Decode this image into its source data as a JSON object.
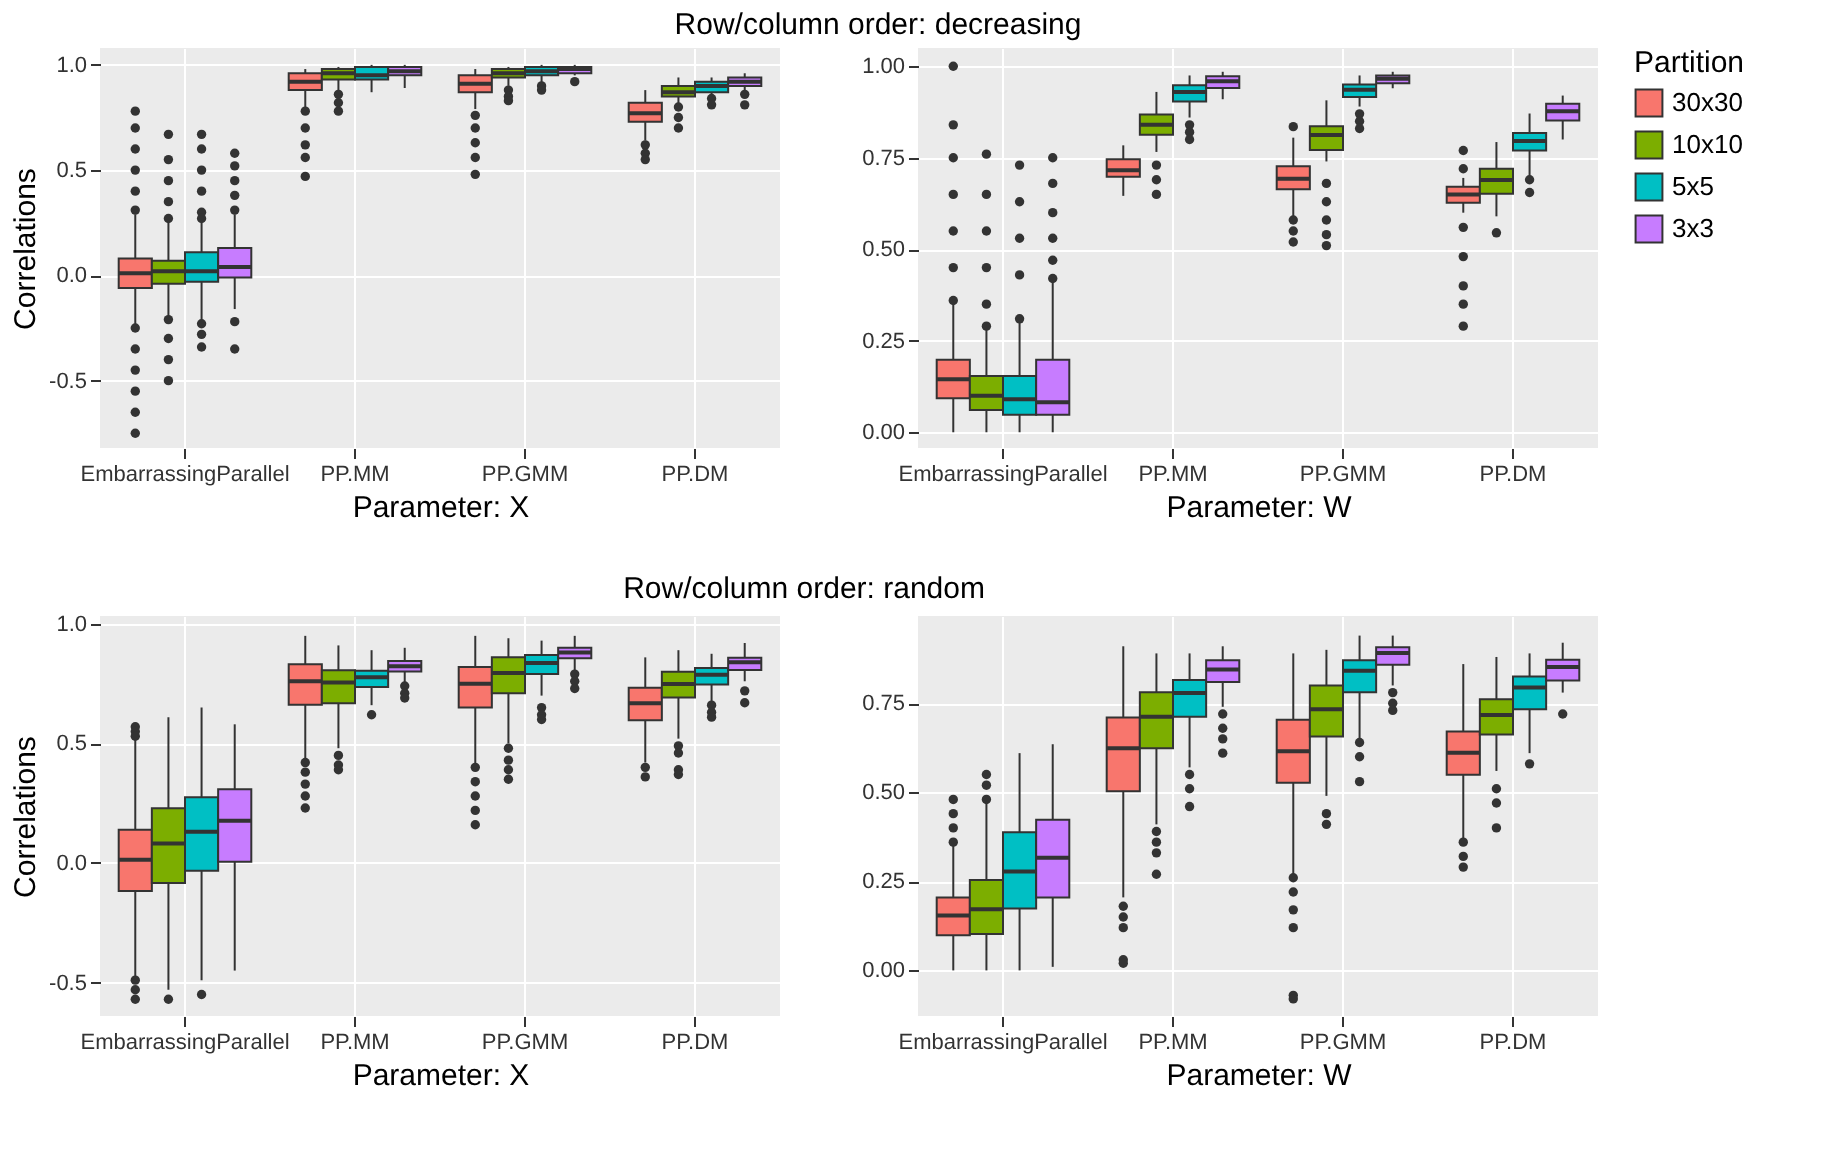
{
  "chart_data": [
    {
      "type": "box",
      "title": "Row/column order: decreasing",
      "xlabel": "Parameter: X",
      "ylabel": "Correlations",
      "categories": [
        "EmbarrassingParallel",
        "PP.MM",
        "PP.GMM",
        "PP.DM"
      ],
      "ylim": [
        -0.82,
        1.08
      ],
      "yticks": [
        -0.5,
        {
          "value": 0,
          "label": "0.0"
        },
        0.5,
        {
          "value": 1,
          "label": "1.0"
        }
      ],
      "grid": true,
      "legend": false,
      "series": [
        {
          "color": "#f8766d",
          "boxes": [
            {
              "low": -0.24,
              "q1": -0.06,
              "median": 0.01,
              "q3": 0.08,
              "high": 0.29,
              "outliers": [
                0.78,
                0.7,
                0.6,
                0.5,
                0.4,
                0.31,
                -0.25,
                -0.35,
                -0.45,
                -0.55,
                -0.65,
                -0.75
              ]
            },
            {
              "low": 0.79,
              "q1": 0.88,
              "median": 0.92,
              "q3": 0.96,
              "high": 0.98,
              "outliers": [
                0.78,
                0.7,
                0.62,
                0.56,
                0.47
              ]
            },
            {
              "low": 0.79,
              "q1": 0.87,
              "median": 0.91,
              "q3": 0.95,
              "high": 0.98,
              "outliers": [
                0.76,
                0.7,
                0.63,
                0.56,
                0.48
              ]
            },
            {
              "low": 0.64,
              "q1": 0.73,
              "median": 0.77,
              "q3": 0.82,
              "high": 0.88,
              "outliers": [
                0.62,
                0.58,
                0.55
              ]
            }
          ]
        },
        {
          "color": "#7cae00",
          "boxes": [
            {
              "low": -0.2,
              "q1": -0.04,
              "median": 0.02,
              "q3": 0.07,
              "high": 0.25,
              "outliers": [
                0.67,
                0.55,
                0.45,
                0.35,
                0.27,
                -0.21,
                -0.3,
                -0.4,
                -0.5
              ]
            },
            {
              "low": 0.87,
              "q1": 0.93,
              "median": 0.96,
              "q3": 0.98,
              "high": 0.99,
              "outliers": [
                0.86,
                0.82,
                0.78
              ]
            },
            {
              "low": 0.9,
              "q1": 0.94,
              "median": 0.96,
              "q3": 0.98,
              "high": 0.99,
              "outliers": [
                0.88,
                0.85,
                0.83
              ]
            },
            {
              "low": 0.81,
              "q1": 0.85,
              "median": 0.87,
              "q3": 0.9,
              "high": 0.94,
              "outliers": [
                0.8,
                0.75,
                0.7
              ]
            }
          ]
        },
        {
          "color": "#00bfc4",
          "boxes": [
            {
              "low": -0.22,
              "q1": -0.03,
              "median": 0.02,
              "q3": 0.11,
              "high": 0.25,
              "outliers": [
                0.67,
                0.6,
                0.5,
                0.4,
                0.3,
                0.27,
                -0.23,
                -0.28,
                -0.34
              ]
            },
            {
              "low": 0.87,
              "q1": 0.93,
              "median": 0.95,
              "q3": 0.99,
              "high": 1.0
            },
            {
              "low": 0.91,
              "q1": 0.95,
              "median": 0.97,
              "q3": 0.99,
              "high": 1.0,
              "outliers": [
                0.9,
                0.88
              ]
            },
            {
              "low": 0.85,
              "q1": 0.87,
              "median": 0.9,
              "q3": 0.92,
              "high": 0.94,
              "outliers": [
                0.84,
                0.81
              ]
            }
          ]
        },
        {
          "color": "#c77cff",
          "boxes": [
            {
              "low": -0.16,
              "q1": -0.01,
              "median": 0.04,
              "q3": 0.13,
              "high": 0.29,
              "outliers": [
                0.58,
                0.52,
                0.45,
                0.38,
                0.31,
                -0.22,
                -0.35
              ]
            },
            {
              "low": 0.89,
              "q1": 0.95,
              "median": 0.97,
              "q3": 0.99,
              "high": 1.0
            },
            {
              "low": 0.95,
              "q1": 0.96,
              "median": 0.98,
              "q3": 0.99,
              "high": 1.0,
              "outliers": [
                0.92
              ]
            },
            {
              "low": 0.88,
              "q1": 0.9,
              "median": 0.92,
              "q3": 0.94,
              "high": 0.96,
              "outliers": [
                0.86,
                0.81
              ]
            }
          ]
        }
      ]
    },
    {
      "type": "box",
      "xlabel": "Parameter: W",
      "categories": [
        "EmbarrassingParallel",
        "PP.MM",
        "PP.GMM",
        "PP.DM"
      ],
      "ylim": [
        -0.043,
        1.05
      ],
      "yticks": [
        {
          "value": 0,
          "label": "0.00"
        },
        0.25,
        {
          "value": 0.5,
          "label": "0.50"
        },
        0.75,
        {
          "value": 1,
          "label": "1.00"
        }
      ],
      "grid": true,
      "legend": "right",
      "legend_title": "Partition",
      "series": [
        {
          "name": "30x30",
          "color": "#f8766d",
          "boxes": [
            {
              "low": 0,
              "q1": 0.093,
              "median": 0.145,
              "q3": 0.198,
              "high": 0.35,
              "outliers": [
                1.0,
                0.84,
                0.75,
                0.65,
                0.55,
                0.45,
                0.36
              ]
            },
            {
              "low": 0.646,
              "q1": 0.698,
              "median": 0.716,
              "q3": 0.746,
              "high": 0.784
            },
            {
              "low": 0.587,
              "q1": 0.664,
              "median": 0.693,
              "q3": 0.727,
              "high": 0.805,
              "outliers": [
                0.835,
                0.58,
                0.55,
                0.52
              ]
            },
            {
              "low": 0.6,
              "q1": 0.627,
              "median": 0.65,
              "q3": 0.671,
              "high": 0.695,
              "outliers": [
                0.77,
                0.72,
                0.56,
                0.48,
                0.4,
                0.35,
                0.29
              ]
            }
          ]
        },
        {
          "name": "10x10",
          "color": "#7cae00",
          "boxes": [
            {
              "low": 0,
              "q1": 0.061,
              "median": 0.1,
              "q3": 0.154,
              "high": 0.28,
              "outliers": [
                0.76,
                0.65,
                0.55,
                0.45,
                0.35,
                0.29
              ]
            },
            {
              "low": 0.766,
              "q1": 0.813,
              "median": 0.84,
              "q3": 0.868,
              "high": 0.93,
              "outliers": [
                0.73,
                0.69,
                0.65
              ]
            },
            {
              "low": 0.74,
              "q1": 0.771,
              "median": 0.812,
              "q3": 0.836,
              "high": 0.907,
              "outliers": [
                0.68,
                0.63,
                0.58,
                0.54,
                0.51
              ]
            },
            {
              "low": 0.59,
              "q1": 0.652,
              "median": 0.689,
              "q3": 0.72,
              "high": 0.793,
              "outliers": [
                0.545
              ]
            }
          ]
        },
        {
          "name": "5x5",
          "color": "#00bfc4",
          "boxes": [
            {
              "low": 0,
              "q1": 0.048,
              "median": 0.09,
              "q3": 0.154,
              "high": 0.3,
              "outliers": [
                0.73,
                0.63,
                0.53,
                0.43,
                0.31
              ]
            },
            {
              "low": 0.86,
              "q1": 0.904,
              "median": 0.93,
              "q3": 0.948,
              "high": 0.975,
              "outliers": [
                0.84,
                0.82,
                0.8
              ]
            },
            {
              "low": 0.89,
              "q1": 0.916,
              "median": 0.936,
              "q3": 0.95,
              "high": 0.975,
              "outliers": [
                0.87,
                0.85,
                0.83
              ]
            },
            {
              "low": 0.7,
              "q1": 0.77,
              "median": 0.796,
              "q3": 0.818,
              "high": 0.871,
              "outliers": [
                0.69,
                0.655
              ]
            }
          ]
        },
        {
          "name": "3x3",
          "color": "#c77cff",
          "boxes": [
            {
              "low": 0,
              "q1": 0.048,
              "median": 0.082,
              "q3": 0.198,
              "high": 0.41,
              "outliers": [
                0.75,
                0.68,
                0.6,
                0.53,
                0.47,
                0.42
              ]
            },
            {
              "low": 0.91,
              "q1": 0.941,
              "median": 0.959,
              "q3": 0.973,
              "high": 0.985
            },
            {
              "low": 0.94,
              "q1": 0.954,
              "median": 0.966,
              "q3": 0.975,
              "high": 0.985
            },
            {
              "low": 0.8,
              "q1": 0.852,
              "median": 0.877,
              "q3": 0.898,
              "high": 0.92
            }
          ]
        }
      ]
    },
    {
      "type": "box",
      "title": "Row/column order: random",
      "xlabel": "Parameter: X",
      "ylabel": "Correlations",
      "categories": [
        "EmbarrassingParallel",
        "PP.MM",
        "PP.GMM",
        "PP.DM"
      ],
      "ylim": [
        -0.64,
        1.033
      ],
      "yticks": [
        -0.5,
        {
          "value": 0,
          "label": "0.0"
        },
        0.5,
        {
          "value": 1,
          "label": "1.0"
        }
      ],
      "grid": true,
      "legend": false,
      "series": [
        {
          "color": "#f8766d",
          "boxes": [
            {
              "low": -0.48,
              "q1": -0.117,
              "median": 0.014,
              "q3": 0.139,
              "high": 0.52,
              "outliers": [
                0.57,
                0.55,
                0.53,
                -0.49,
                -0.53,
                -0.57
              ]
            },
            {
              "low": 0.43,
              "q1": 0.662,
              "median": 0.76,
              "q3": 0.831,
              "high": 0.95,
              "outliers": [
                0.42,
                0.38,
                0.33,
                0.28,
                0.23
              ]
            },
            {
              "low": 0.41,
              "q1": 0.65,
              "median": 0.75,
              "q3": 0.82,
              "high": 0.95,
              "outliers": [
                0.4,
                0.34,
                0.28,
                0.22,
                0.16
              ]
            },
            {
              "low": 0.42,
              "q1": 0.597,
              "median": 0.668,
              "q3": 0.733,
              "high": 0.86,
              "outliers": [
                0.4,
                0.36
              ]
            }
          ]
        },
        {
          "color": "#7cae00",
          "boxes": [
            {
              "low": -0.53,
              "q1": -0.084,
              "median": 0.082,
              "q3": 0.229,
              "high": 0.61,
              "outliers": [
                -0.57
              ]
            },
            {
              "low": 0.48,
              "q1": 0.668,
              "median": 0.755,
              "q3": 0.806,
              "high": 0.91,
              "outliers": [
                0.45,
                0.41,
                0.39
              ]
            },
            {
              "low": 0.5,
              "q1": 0.71,
              "median": 0.795,
              "q3": 0.86,
              "high": 0.94,
              "outliers": [
                0.48,
                0.43,
                0.39,
                0.35
              ]
            },
            {
              "low": 0.52,
              "q1": 0.692,
              "median": 0.749,
              "q3": 0.8,
              "high": 0.89,
              "outliers": [
                0.49,
                0.46,
                0.39,
                0.37
              ]
            }
          ]
        },
        {
          "color": "#00bfc4",
          "boxes": [
            {
              "low": -0.49,
              "q1": -0.033,
              "median": 0.131,
              "q3": 0.275,
              "high": 0.65,
              "outliers": [
                -0.55
              ]
            },
            {
              "low": 0.66,
              "q1": 0.736,
              "median": 0.777,
              "q3": 0.804,
              "high": 0.89,
              "outliers": [
                0.62
              ]
            },
            {
              "low": 0.7,
              "q1": 0.79,
              "median": 0.836,
              "q3": 0.87,
              "high": 0.93,
              "outliers": [
                0.65,
                0.62,
                0.6
              ]
            },
            {
              "low": 0.67,
              "q1": 0.747,
              "median": 0.787,
              "q3": 0.815,
              "high": 0.875,
              "outliers": [
                0.66,
                0.63,
                0.61
              ]
            }
          ]
        },
        {
          "color": "#c77cff",
          "boxes": [
            {
              "low": -0.45,
              "q1": 0.005,
              "median": 0.177,
              "q3": 0.308,
              "high": 0.58
            },
            {
              "low": 0.75,
              "q1": 0.801,
              "median": 0.823,
              "q3": 0.845,
              "high": 0.9,
              "outliers": [
                0.74,
                0.71,
                0.69
              ]
            },
            {
              "low": 0.8,
              "q1": 0.856,
              "median": 0.88,
              "q3": 0.9,
              "high": 0.95,
              "outliers": [
                0.79,
                0.76,
                0.73
              ]
            },
            {
              "low": 0.76,
              "q1": 0.807,
              "median": 0.84,
              "q3": 0.858,
              "high": 0.92,
              "outliers": [
                0.72,
                0.67
              ]
            }
          ]
        }
      ]
    },
    {
      "type": "box",
      "xlabel": "Parameter: W",
      "categories": [
        "EmbarrassingParallel",
        "PP.MM",
        "PP.GMM",
        "PP.DM"
      ],
      "ylim": [
        -0.128,
        0.995
      ],
      "yticks": [
        {
          "value": 0,
          "label": "0.00"
        },
        0.25,
        {
          "value": 0.5,
          "label": "0.50"
        },
        0.75
      ],
      "grid": true,
      "legend": false,
      "series": [
        {
          "color": "#f8766d",
          "boxes": [
            {
              "low": 0,
              "q1": 0.099,
              "median": 0.154,
              "q3": 0.205,
              "high": 0.35,
              "outliers": [
                0.48,
                0.44,
                0.4,
                0.36
              ]
            },
            {
              "low": 0.205,
              "q1": 0.503,
              "median": 0.624,
              "q3": 0.71,
              "high": 0.91,
              "outliers": [
                0.18,
                0.15,
                0.12,
                0.03,
                0.02
              ]
            },
            {
              "low": 0.27,
              "q1": 0.527,
              "median": 0.615,
              "q3": 0.704,
              "high": 0.89,
              "outliers": [
                0.26,
                0.22,
                0.17,
                0.12,
                -0.07,
                -0.08
              ]
            },
            {
              "low": 0.37,
              "q1": 0.549,
              "median": 0.611,
              "q3": 0.671,
              "high": 0.86,
              "outliers": [
                0.36,
                0.32,
                0.29
              ]
            }
          ]
        },
        {
          "color": "#7cae00",
          "boxes": [
            {
              "low": 0,
              "q1": 0.102,
              "median": 0.172,
              "q3": 0.254,
              "high": 0.47,
              "outliers": [
                0.55,
                0.52,
                0.48
              ]
            },
            {
              "low": 0.41,
              "q1": 0.624,
              "median": 0.712,
              "q3": 0.781,
              "high": 0.89,
              "outliers": [
                0.39,
                0.36,
                0.33,
                0.27
              ]
            },
            {
              "low": 0.49,
              "q1": 0.657,
              "median": 0.733,
              "q3": 0.8,
              "high": 0.9,
              "outliers": [
                0.44,
                0.41
              ]
            },
            {
              "low": 0.56,
              "q1": 0.662,
              "median": 0.717,
              "q3": 0.761,
              "high": 0.88,
              "outliers": [
                0.51,
                0.47,
                0.4
              ]
            }
          ]
        },
        {
          "color": "#00bfc4",
          "boxes": [
            {
              "low": 0,
              "q1": 0.174,
              "median": 0.278,
              "q3": 0.388,
              "high": 0.61
            },
            {
              "low": 0.57,
              "q1": 0.712,
              "median": 0.779,
              "q3": 0.815,
              "high": 0.89,
              "outliers": [
                0.55,
                0.51,
                0.46
              ]
            },
            {
              "low": 0.65,
              "q1": 0.781,
              "median": 0.841,
              "q3": 0.871,
              "high": 0.94,
              "outliers": [
                0.64,
                0.6,
                0.53
              ]
            },
            {
              "low": 0.61,
              "q1": 0.733,
              "median": 0.794,
              "q3": 0.825,
              "high": 0.89,
              "outliers": [
                0.58
              ]
            }
          ]
        },
        {
          "color": "#c77cff",
          "boxes": [
            {
              "low": 0.01,
              "q1": 0.205,
              "median": 0.316,
              "q3": 0.423,
              "high": 0.635
            },
            {
              "low": 0.74,
              "q1": 0.81,
              "median": 0.845,
              "q3": 0.871,
              "high": 0.91,
              "outliers": [
                0.72,
                0.68,
                0.65,
                0.61
              ]
            },
            {
              "low": 0.8,
              "q1": 0.858,
              "median": 0.891,
              "q3": 0.907,
              "high": 0.94,
              "outliers": [
                0.78,
                0.75,
                0.73
              ]
            },
            {
              "low": 0.78,
              "q1": 0.814,
              "median": 0.852,
              "q3": 0.872,
              "high": 0.92,
              "outliers": [
                0.72
              ]
            }
          ]
        }
      ]
    }
  ]
}
